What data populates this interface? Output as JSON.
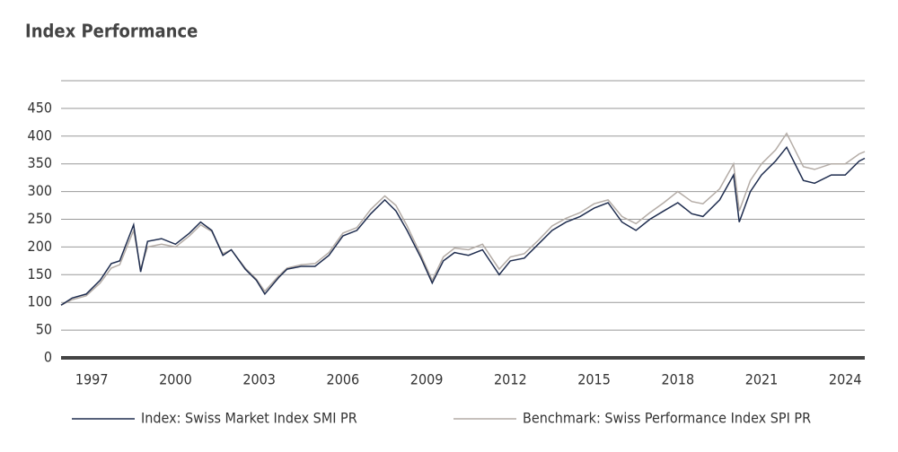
{
  "chart_data": {
    "type": "line",
    "title": "Index Performance",
    "x": [
      1995.9,
      1996.3,
      1996.8,
      1997.3,
      1997.7,
      1998.0,
      1998.5,
      1998.75,
      1999.0,
      1999.5,
      2000.0,
      2000.5,
      2000.9,
      2001.3,
      2001.7,
      2002.0,
      2002.5,
      2002.9,
      2003.2,
      2003.7,
      2004.0,
      2004.5,
      2005.0,
      2005.5,
      2006.0,
      2006.5,
      2007.0,
      2007.5,
      2007.9,
      2008.3,
      2008.8,
      2009.2,
      2009.6,
      2010.0,
      2010.5,
      2011.0,
      2011.6,
      2012.0,
      2012.5,
      2013.0,
      2013.5,
      2014.0,
      2014.5,
      2015.0,
      2015.5,
      2016.0,
      2016.5,
      2017.0,
      2017.5,
      2018.0,
      2018.5,
      2018.9,
      2019.5,
      2020.0,
      2020.2,
      2020.6,
      2021.0,
      2021.5,
      2021.9,
      2022.5,
      2022.9,
      2023.5,
      2024.0,
      2024.5,
      2024.7
    ],
    "series": [
      {
        "name": "Index: Swiss Market Index SMI PR",
        "color": "#1f2d4f",
        "values": [
          95,
          108,
          115,
          140,
          170,
          175,
          240,
          155,
          210,
          215,
          205,
          225,
          245,
          230,
          185,
          195,
          160,
          140,
          115,
          145,
          160,
          165,
          165,
          185,
          220,
          230,
          260,
          285,
          265,
          230,
          180,
          135,
          175,
          190,
          185,
          195,
          150,
          175,
          180,
          205,
          230,
          245,
          255,
          270,
          280,
          245,
          230,
          250,
          265,
          280,
          260,
          255,
          285,
          330,
          245,
          300,
          330,
          355,
          380,
          320,
          315,
          330,
          330,
          355,
          360
        ]
      },
      {
        "name": "Benchmark: Swiss Performance Index SPI PR",
        "color": "#b4aca6",
        "values": [
          95,
          105,
          112,
          135,
          162,
          168,
          230,
          160,
          200,
          205,
          200,
          220,
          240,
          228,
          188,
          195,
          162,
          142,
          120,
          148,
          162,
          168,
          170,
          190,
          225,
          235,
          268,
          292,
          275,
          238,
          185,
          140,
          182,
          198,
          195,
          205,
          160,
          182,
          188,
          212,
          238,
          252,
          262,
          278,
          285,
          255,
          242,
          262,
          280,
          300,
          282,
          278,
          305,
          350,
          265,
          320,
          350,
          375,
          405,
          345,
          340,
          350,
          350,
          368,
          372
        ]
      }
    ],
    "xlim": [
      1995.9,
      2024.7
    ],
    "xticks": [
      1997,
      2000,
      2003,
      2006,
      2009,
      2012,
      2015,
      2018,
      2021,
      2024
    ],
    "ylim": [
      0,
      500
    ],
    "yticks": [
      0,
      50,
      100,
      150,
      200,
      250,
      300,
      350,
      400,
      450
    ],
    "grid": true,
    "legend": "bottom"
  }
}
